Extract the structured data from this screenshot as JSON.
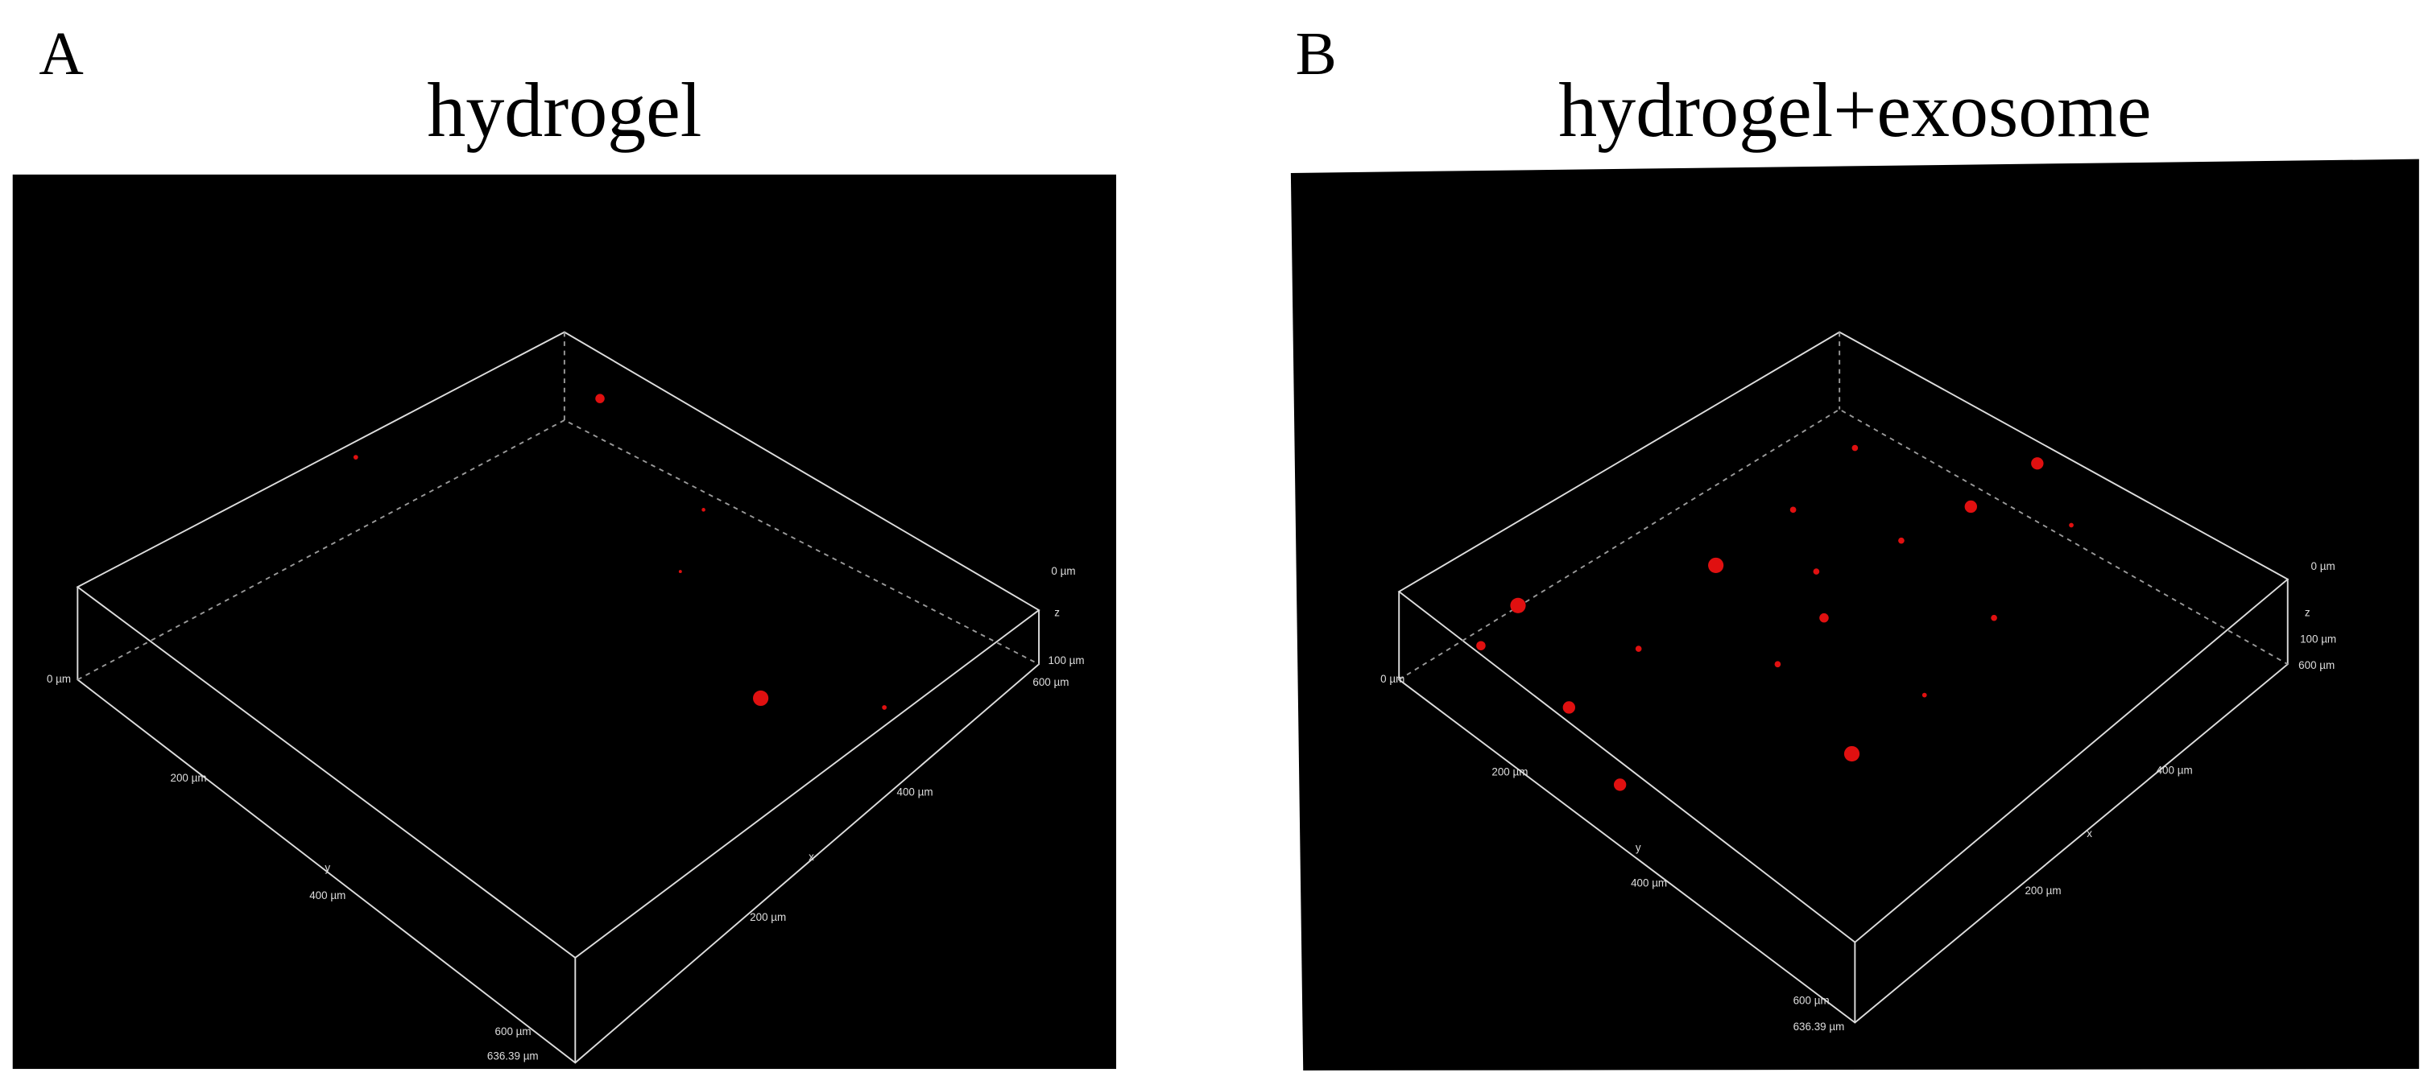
{
  "panels": [
    {
      "letter": "A",
      "title": "hydrogel",
      "axis_labels": [
        "0 µm",
        "z",
        "100 µm",
        "600 µm",
        "0 µm",
        "200 µm",
        "y",
        "400 µm",
        "600 µm",
        "636.39 µm",
        "400 µm",
        "x",
        "200 µm"
      ]
    },
    {
      "letter": "B",
      "title": "hydrogel+exosome",
      "axis_labels": [
        "0 µm",
        "z",
        "100 µm",
        "600 µm",
        "0 µm",
        "200 µm",
        "y",
        "400 µm",
        "600 µm",
        "636.39 µm",
        "400 µm",
        "x",
        "200 µm"
      ]
    }
  ]
}
